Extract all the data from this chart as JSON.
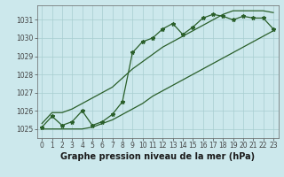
{
  "title": "Graphe pression niveau de la mer (hPa)",
  "x_labels": [
    "0",
    "1",
    "2",
    "3",
    "4",
    "5",
    "6",
    "7",
    "8",
    "9",
    "10",
    "11",
    "12",
    "13",
    "14",
    "15",
    "16",
    "17",
    "18",
    "19",
    "20",
    "21",
    "22",
    "23"
  ],
  "pressure": [
    1025.1,
    1025.7,
    1025.2,
    1025.4,
    1026.0,
    1025.2,
    1025.4,
    1025.8,
    1026.5,
    1029.2,
    1029.8,
    1030.0,
    1030.5,
    1030.8,
    1030.2,
    1030.6,
    1031.1,
    1031.3,
    1031.2,
    1031.0,
    1031.2,
    1031.1,
    1031.1,
    1030.5
  ],
  "upper_envelope": [
    1025.3,
    1025.9,
    1025.9,
    1026.1,
    1026.4,
    1026.7,
    1027.0,
    1027.3,
    1027.8,
    1028.3,
    1028.7,
    1029.1,
    1029.5,
    1029.8,
    1030.1,
    1030.4,
    1030.7,
    1031.0,
    1031.3,
    1031.5,
    1031.5,
    1031.5,
    1031.5,
    1031.4
  ],
  "lower_envelope": [
    1025.0,
    1025.0,
    1025.0,
    1025.0,
    1025.0,
    1025.1,
    1025.3,
    1025.5,
    1025.8,
    1026.1,
    1026.4,
    1026.8,
    1027.1,
    1027.4,
    1027.7,
    1028.0,
    1028.3,
    1028.6,
    1028.9,
    1029.2,
    1029.5,
    1029.8,
    1030.1,
    1030.4
  ],
  "ylim": [
    1024.5,
    1031.8
  ],
  "yticks": [
    1025,
    1026,
    1027,
    1028,
    1029,
    1030,
    1031
  ],
  "line_color": "#2a5f2a",
  "bg_color": "#cce8ec",
  "grid_color": "#a8cdd0",
  "title_fontsize": 7.0,
  "tick_fontsize": 5.5
}
